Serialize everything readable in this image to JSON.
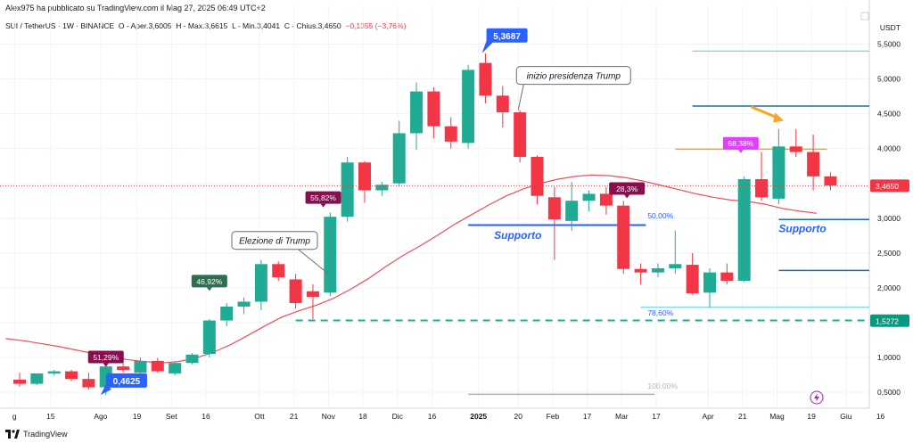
{
  "header": {
    "publisher": "Alex975 ha pubblicato su TradingView.com il Mag 27, 2025 06:49 UTC+2"
  },
  "legend": {
    "symbol": "SUI / TetherUS · 1W · BINANCE",
    "open": "O - Aper.3,6005",
    "high": "H - Max.3,6615",
    "low": "L - Min.3,4041",
    "close": "C - Chius.3,4650",
    "change": "−0,1355 (−3,76%)"
  },
  "axis_unit": "USDT",
  "branding": "TradingView",
  "colors": {
    "up": "#22ab94",
    "down": "#f23645",
    "ma": "#e8505b",
    "support_blue": "#2962ff",
    "fib_dash": "#22ab94",
    "orange": "#f5a623",
    "magenta": "#e040fb",
    "dark_maroon": "#880e4f",
    "dark_green": "#2e6e4e",
    "hline_blue": "#1e6ea7",
    "hline_cyan": "#4dd0e1"
  },
  "chart_data": {
    "type": "candlestick",
    "title": "SUI / TetherUS · 1W · BINANCE",
    "ylabel": "USDT",
    "ylim": [
      0.3,
      6.0
    ],
    "y_ticks": [
      "5,5000",
      "5,0000",
      "4,5000",
      "4,0000",
      "3,5000",
      "3,0000",
      "2,5000",
      "2,0000",
      "1,5000",
      "1,0000",
      "0,5000"
    ],
    "y_tick_values": [
      5.5,
      5.0,
      4.5,
      4.0,
      3.5,
      3.0,
      2.5,
      2.0,
      1.5,
      1.0,
      0.5
    ],
    "x_ticks": [
      {
        "i": -0.3,
        "label": "g"
      },
      {
        "i": 1.8,
        "label": "15"
      },
      {
        "i": 4.7,
        "label": "Ago"
      },
      {
        "i": 6.8,
        "label": "19"
      },
      {
        "i": 8.8,
        "label": "Set"
      },
      {
        "i": 10.8,
        "label": "16"
      },
      {
        "i": 13.9,
        "label": "Ott"
      },
      {
        "i": 15.9,
        "label": "21"
      },
      {
        "i": 17.9,
        "label": "Nov"
      },
      {
        "i": 19.9,
        "label": "18"
      },
      {
        "i": 21.9,
        "label": "Dic"
      },
      {
        "i": 23.9,
        "label": "16"
      },
      {
        "i": 26.6,
        "label": "2025",
        "bold": true
      },
      {
        "i": 28.9,
        "label": "20"
      },
      {
        "i": 30.9,
        "label": "Feb"
      },
      {
        "i": 32.9,
        "label": "17"
      },
      {
        "i": 34.9,
        "label": "Mar"
      },
      {
        "i": 36.9,
        "label": "17"
      },
      {
        "i": 39.9,
        "label": "Apr"
      },
      {
        "i": 41.9,
        "label": "21"
      },
      {
        "i": 43.9,
        "label": "Mag"
      },
      {
        "i": 45.9,
        "label": "19"
      },
      {
        "i": 47.9,
        "label": "Giu"
      },
      {
        "i": 49.9,
        "label": "16"
      }
    ],
    "candles": [
      {
        "o": 0.68,
        "h": 0.78,
        "l": 0.58,
        "c": 0.62
      },
      {
        "o": 0.62,
        "h": 0.75,
        "l": 0.6,
        "c": 0.77
      },
      {
        "o": 0.77,
        "h": 0.82,
        "l": 0.74,
        "c": 0.8
      },
      {
        "o": 0.8,
        "h": 0.82,
        "l": 0.66,
        "c": 0.69
      },
      {
        "o": 0.69,
        "h": 0.78,
        "l": 0.54,
        "c": 0.57
      },
      {
        "o": 0.57,
        "h": 0.98,
        "l": 0.46,
        "c": 0.87
      },
      {
        "o": 0.87,
        "h": 0.92,
        "l": 0.78,
        "c": 0.82
      },
      {
        "o": 0.78,
        "h": 1.0,
        "l": 0.74,
        "c": 0.95
      },
      {
        "o": 0.95,
        "h": 0.99,
        "l": 0.78,
        "c": 0.8
      },
      {
        "o": 0.77,
        "h": 0.94,
        "l": 0.74,
        "c": 0.92
      },
      {
        "o": 0.92,
        "h": 1.06,
        "l": 0.9,
        "c": 1.04
      },
      {
        "o": 1.05,
        "h": 1.55,
        "l": 1.0,
        "c": 1.53
      },
      {
        "o": 1.53,
        "h": 1.78,
        "l": 1.45,
        "c": 1.73
      },
      {
        "o": 1.73,
        "h": 1.86,
        "l": 1.62,
        "c": 1.8
      },
      {
        "o": 1.8,
        "h": 2.4,
        "l": 1.68,
        "c": 2.34
      },
      {
        "o": 2.34,
        "h": 2.38,
        "l": 2.1,
        "c": 2.15
      },
      {
        "o": 2.12,
        "h": 2.2,
        "l": 1.7,
        "c": 1.78
      },
      {
        "o": 1.95,
        "h": 2.05,
        "l": 1.55,
        "c": 1.87
      },
      {
        "o": 1.93,
        "h": 3.08,
        "l": 1.88,
        "c": 3.02
      },
      {
        "o": 3.02,
        "h": 3.88,
        "l": 2.95,
        "c": 3.8
      },
      {
        "o": 3.8,
        "h": 3.82,
        "l": 3.22,
        "c": 3.4
      },
      {
        "o": 3.4,
        "h": 3.52,
        "l": 3.32,
        "c": 3.48
      },
      {
        "o": 3.5,
        "h": 4.4,
        "l": 3.45,
        "c": 4.22
      },
      {
        "o": 4.22,
        "h": 4.95,
        "l": 3.98,
        "c": 4.82
      },
      {
        "o": 4.82,
        "h": 4.88,
        "l": 4.15,
        "c": 4.32
      },
      {
        "o": 4.32,
        "h": 4.45,
        "l": 4.0,
        "c": 4.1
      },
      {
        "o": 4.08,
        "h": 5.2,
        "l": 4.0,
        "c": 5.13
      },
      {
        "o": 5.23,
        "h": 5.37,
        "l": 4.65,
        "c": 4.76
      },
      {
        "o": 4.76,
        "h": 4.9,
        "l": 4.3,
        "c": 4.52
      },
      {
        "o": 4.52,
        "h": 4.55,
        "l": 3.8,
        "c": 3.88
      },
      {
        "o": 3.88,
        "h": 3.9,
        "l": 3.2,
        "c": 3.32
      },
      {
        "o": 3.3,
        "h": 3.45,
        "l": 2.4,
        "c": 2.98
      },
      {
        "o": 2.96,
        "h": 3.52,
        "l": 2.82,
        "c": 3.25
      },
      {
        "o": 3.25,
        "h": 3.4,
        "l": 3.1,
        "c": 3.35
      },
      {
        "o": 3.35,
        "h": 3.45,
        "l": 3.05,
        "c": 3.18
      },
      {
        "o": 3.18,
        "h": 3.25,
        "l": 2.2,
        "c": 2.27
      },
      {
        "o": 2.27,
        "h": 2.35,
        "l": 2.05,
        "c": 2.22
      },
      {
        "o": 2.22,
        "h": 2.35,
        "l": 2.15,
        "c": 2.28
      },
      {
        "o": 2.28,
        "h": 2.82,
        "l": 2.2,
        "c": 2.34
      },
      {
        "o": 2.33,
        "h": 2.5,
        "l": 1.9,
        "c": 1.92
      },
      {
        "o": 1.93,
        "h": 2.28,
        "l": 1.72,
        "c": 2.22
      },
      {
        "o": 2.22,
        "h": 2.35,
        "l": 2.05,
        "c": 2.1
      },
      {
        "o": 2.1,
        "h": 3.6,
        "l": 2.08,
        "c": 3.56
      },
      {
        "o": 3.56,
        "h": 3.95,
        "l": 3.25,
        "c": 3.3
      },
      {
        "o": 3.28,
        "h": 4.28,
        "l": 3.2,
        "c": 4.03
      },
      {
        "o": 4.03,
        "h": 4.28,
        "l": 3.88,
        "c": 3.95
      },
      {
        "o": 3.95,
        "h": 4.2,
        "l": 3.4,
        "c": 3.6
      },
      {
        "o": 3.6,
        "h": 3.66,
        "l": 3.4,
        "c": 3.47
      }
    ],
    "ma": [
      1.27,
      1.24,
      1.2,
      1.16,
      1.11,
      1.06,
      1.01,
      0.97,
      0.94,
      0.92,
      0.94,
      0.99,
      1.07,
      1.18,
      1.31,
      1.45,
      1.58,
      1.67,
      1.75,
      1.85,
      1.98,
      2.13,
      2.3,
      2.46,
      2.6,
      2.75,
      2.91,
      3.05,
      3.19,
      3.32,
      3.42,
      3.5,
      3.56,
      3.6,
      3.62,
      3.61,
      3.58,
      3.53,
      3.47,
      3.41,
      3.35,
      3.3,
      3.26,
      3.24,
      3.2,
      3.14,
      3.1,
      3.07
    ],
    "hlines": [
      {
        "y": 5.4,
        "from": 39.0,
        "to": 51.0,
        "color": "#4dd0e1",
        "width": 1
      },
      {
        "y": 4.61,
        "from": 39.0,
        "to": 51.0,
        "color": "#1e6ea7",
        "width": 1.5
      },
      {
        "y": 3.99,
        "from": 38.0,
        "to": 46.8,
        "color": "#f5a623",
        "width": 1.5
      },
      {
        "y": 2.98,
        "from": 44.0,
        "to": 51.0,
        "color": "#1e6ea7",
        "width": 1.5
      },
      {
        "y": 2.25,
        "from": 44.0,
        "to": 51.0,
        "color": "#1e6ea7",
        "width": 1.5
      },
      {
        "y": 1.72,
        "from": 36.0,
        "to": 51.0,
        "color": "#4dd0e1",
        "width": 1
      },
      {
        "y": 0.47,
        "from": 26.0,
        "to": 36.8,
        "color": "#b0b0b0",
        "width": 1.5
      }
    ],
    "support_line": {
      "y": 2.9,
      "from": 26.0,
      "to": 36.3
    },
    "fib_dashed": {
      "y": 1.53,
      "from": 16.0,
      "to": 51.0
    },
    "fib_labels": [
      {
        "text": "50,00%",
        "y": 3.0,
        "i": 36.4
      },
      {
        "text": "78,60%",
        "y": 1.6,
        "i": 36.4
      },
      {
        "text": "100,00%",
        "y": 0.55,
        "i": 36.4
      }
    ],
    "texts": {
      "supporto_left": "Supporto",
      "supporto_right": "Supporto",
      "trump_election": "Elezione di Trump",
      "trump_presidency": "inizio presidenza Trump",
      "top_price": "5,3687",
      "bottom_price": "0,4625",
      "price_last": "3,4650",
      "price_fib": "1,5272"
    },
    "pct_badges": [
      {
        "text": "51,29%",
        "i": 5.0,
        "y": 0.98,
        "color": "#880e4f"
      },
      {
        "text": "46,92%",
        "i": 11.0,
        "y": 2.07,
        "color": "#2e6e4e"
      },
      {
        "text": "55,82%",
        "i": 17.6,
        "y": 3.27,
        "color": "#880e4f"
      },
      {
        "text": "28,3%",
        "i": 35.2,
        "y": 3.4,
        "color": "#880e4f"
      },
      {
        "text": "68,38%",
        "i": 41.8,
        "y": 4.05,
        "color": "#e040fb"
      }
    ],
    "icon": "lightning-icon"
  }
}
